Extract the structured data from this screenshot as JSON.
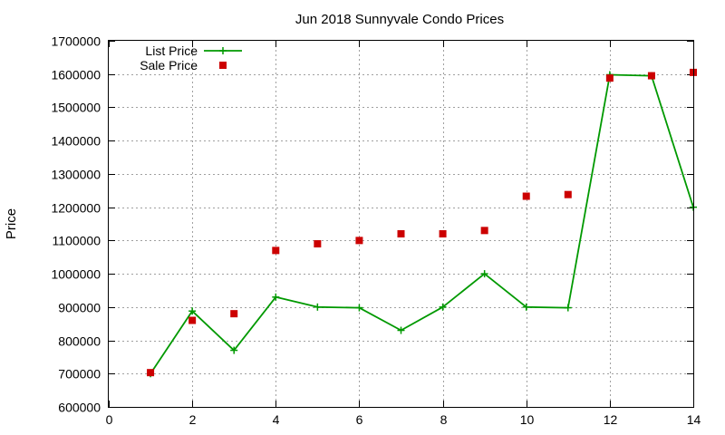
{
  "chart_data": {
    "type": "line",
    "title": "Jun 2018 Sunnyvale Condo Prices",
    "xlabel": "",
    "ylabel": "Price",
    "xlim": [
      0,
      14
    ],
    "ylim": [
      600000,
      1700000
    ],
    "xticks": [
      0,
      2,
      4,
      6,
      8,
      10,
      12,
      14
    ],
    "yticks": [
      600000,
      700000,
      800000,
      900000,
      1000000,
      1100000,
      1200000,
      1300000,
      1400000,
      1500000,
      1600000,
      1700000
    ],
    "grid": true,
    "legend_position": "top-left",
    "series": [
      {
        "name": "List Price",
        "style": "line-cross",
        "color": "#009900",
        "x": [
          1,
          2,
          3,
          4,
          5,
          6,
          7,
          8,
          9,
          10,
          11,
          12,
          13,
          14
        ],
        "y": [
          700000,
          888000,
          770000,
          930000,
          900000,
          898000,
          830000,
          900000,
          1000000,
          900000,
          898000,
          1598000,
          1595000,
          1200000
        ]
      },
      {
        "name": "Sale Price",
        "style": "square-points",
        "color": "#cc0000",
        "x": [
          1,
          2,
          3,
          4,
          5,
          6,
          7,
          8,
          9,
          10,
          11,
          12,
          13,
          14
        ],
        "y": [
          703000,
          860000,
          880000,
          1070000,
          1090000,
          1100000,
          1120000,
          1120000,
          1130000,
          1233000,
          1238000,
          1588000,
          1595000,
          1605000
        ]
      }
    ]
  }
}
